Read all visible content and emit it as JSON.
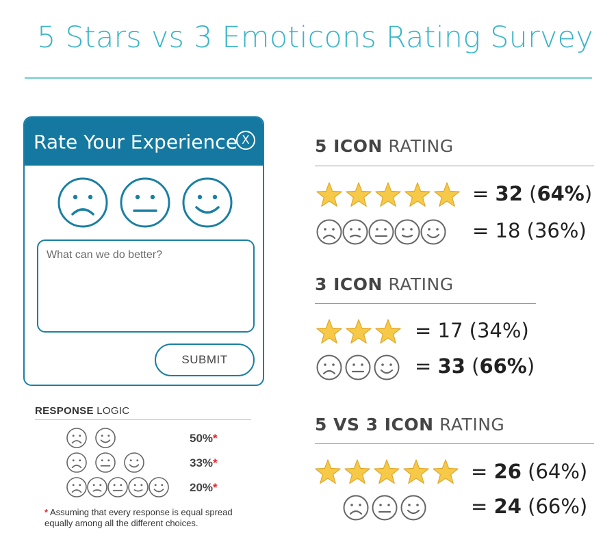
{
  "title": "5 Stars vs 3 Emoticons Rating Survey",
  "widget": {
    "title": "Rate Your Experience",
    "close_label": "X",
    "faces": [
      "sad",
      "neutral",
      "happy"
    ],
    "textarea_placeholder": "What can we do better?",
    "submit_label": "SUBMIT"
  },
  "response_logic": {
    "heading_bold": "RESPONSE",
    "heading_rest": " LOGIC",
    "rows": [
      {
        "faces": 2,
        "pct": "50%",
        "mark": "*"
      },
      {
        "faces": 3,
        "pct": "33%",
        "mark": "*"
      },
      {
        "faces": 5,
        "pct": "20%",
        "mark": "*"
      }
    ],
    "footnote_mark": "*",
    "footnote": " Assuming that every response is equal spread equally among all the different choices."
  },
  "sections": [
    {
      "heading_bold": "5 ICON",
      "heading_rest": " RATING",
      "rows": [
        {
          "icon": "star",
          "count": 5,
          "eq": "= ",
          "value": "32",
          "pct_open": " (",
          "pct": "64%",
          "pct_close": ")",
          "value_bold": true,
          "pct_bold": true
        },
        {
          "icon": "face",
          "count": 5,
          "eq": "= ",
          "value": "18",
          "pct_open": " (",
          "pct": "36%",
          "pct_close": ")",
          "value_bold": false,
          "pct_bold": false
        }
      ]
    },
    {
      "heading_bold": "3 ICON",
      "heading_rest": " RATING",
      "rows": [
        {
          "icon": "star",
          "count": 3,
          "eq": "= ",
          "value": "17",
          "pct_open": " (",
          "pct": "34%",
          "pct_close": ")",
          "value_bold": false,
          "pct_bold": false
        },
        {
          "icon": "face",
          "count": 3,
          "eq": "= ",
          "value": "33",
          "pct_open": " (",
          "pct": "66%",
          "pct_close": ")",
          "value_bold": true,
          "pct_bold": true
        }
      ]
    },
    {
      "heading_bold": "5 VS 3 ICON",
      "heading_rest": " RATING",
      "rows": [
        {
          "icon": "star",
          "count": 5,
          "eq": "= ",
          "value": "26",
          "pct_open": " (",
          "pct": "64%",
          "pct_close": ")",
          "value_bold": true,
          "pct_bold": false
        },
        {
          "icon": "face",
          "count": 3,
          "eq": "= ",
          "value": "24",
          "pct_open": " (",
          "pct": "66%",
          "pct_close": ")",
          "value_bold": true,
          "pct_bold": false
        }
      ]
    }
  ],
  "colors": {
    "title": "#3ab5c8",
    "widget_blue": "#1478a0",
    "star_fill": "#f7c948",
    "star_stroke": "#e0a82a",
    "face_stroke": "#666666",
    "asterisk": "#e8232a"
  }
}
